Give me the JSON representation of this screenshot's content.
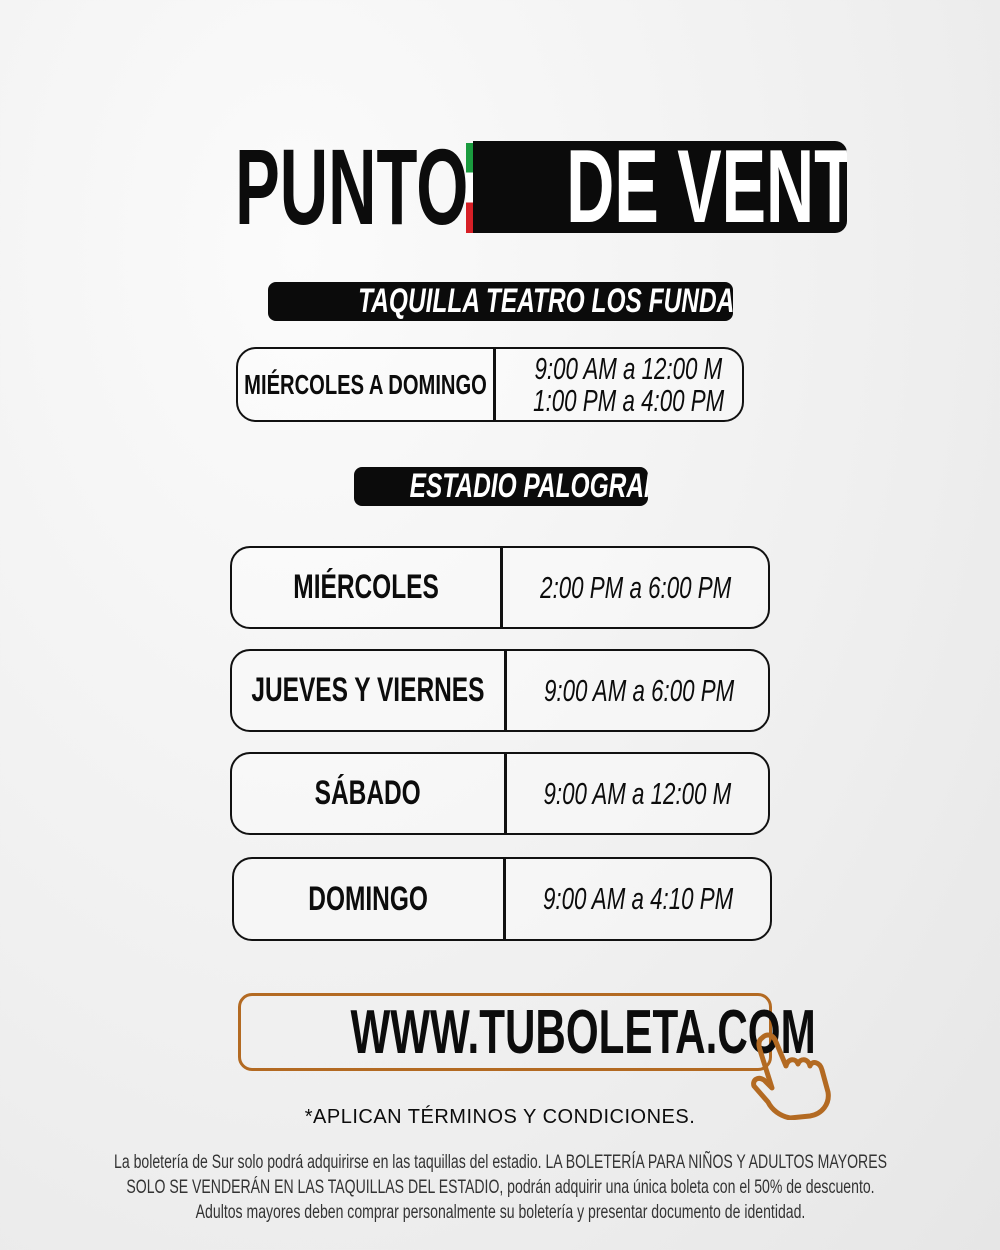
{
  "header": {
    "title_left": "PUNTOS",
    "title_right": "DE VENTA",
    "flag_colors": [
      "#1a9b3e",
      "#ffffff",
      "#d61f26"
    ]
  },
  "sections": [
    {
      "label": "TAQUILLA TEATRO LOS FUNDADORES",
      "rows": [
        {
          "day": "MIÉRCOLES A DOMINGO",
          "hours": [
            "9:00 AM a 12:00 M",
            "1:00 PM a 4:00 PM"
          ]
        }
      ]
    },
    {
      "label": "ESTADIO PALOGRANDE",
      "rows": [
        {
          "day": "MIÉRCOLES",
          "hours": [
            "2:00 PM a 6:00 PM"
          ]
        },
        {
          "day": "JUEVES Y VIERNES",
          "hours": [
            "9:00 AM a 6:00 PM"
          ]
        },
        {
          "day": "SÁBADO",
          "hours": [
            "9:00 AM a 12:00 M"
          ]
        },
        {
          "day": "DOMINGO",
          "hours": [
            "9:00 AM a 4:10 PM"
          ]
        }
      ]
    }
  ],
  "cta": {
    "url": "WWW.TUBOLETA.COM",
    "icon": "pointing-hand-icon",
    "accent": "#b36a22"
  },
  "terms": "*APLICAN TÉRMINOS Y CONDICIONES.",
  "fine_print": "La boletería de Sur solo podrá adquirirse en las taquillas del estadio. LA BOLETERÍA PARA NIÑOS Y ADULTOS MAYORES SOLO SE VENDERÁN EN LAS TAQUILLAS DEL ESTADIO, podrán adquirir una única boleta con el 50% de descuento. Adultos mayores deben comprar personalmente su boletería y presentar documento de identidad."
}
